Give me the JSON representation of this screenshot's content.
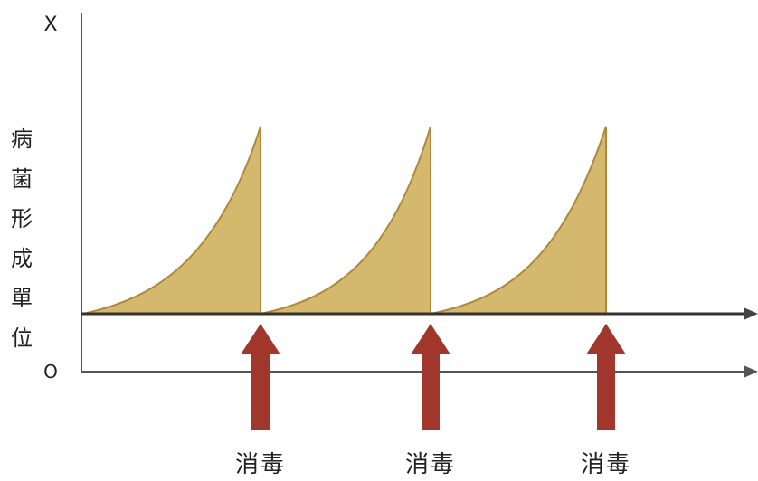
{
  "axis": {
    "top_label": "X",
    "bottom_label": "O",
    "y_label_lines": [
      "病菌",
      "形成",
      "單位"
    ]
  },
  "events": [
    {
      "label": "消毒"
    },
    {
      "label": "消毒"
    },
    {
      "label": "消毒"
    }
  ],
  "colors": {
    "fill": "#d4b86e",
    "outline": "#b0883c",
    "arrow": "#a0362c",
    "axis": "#555555"
  }
}
